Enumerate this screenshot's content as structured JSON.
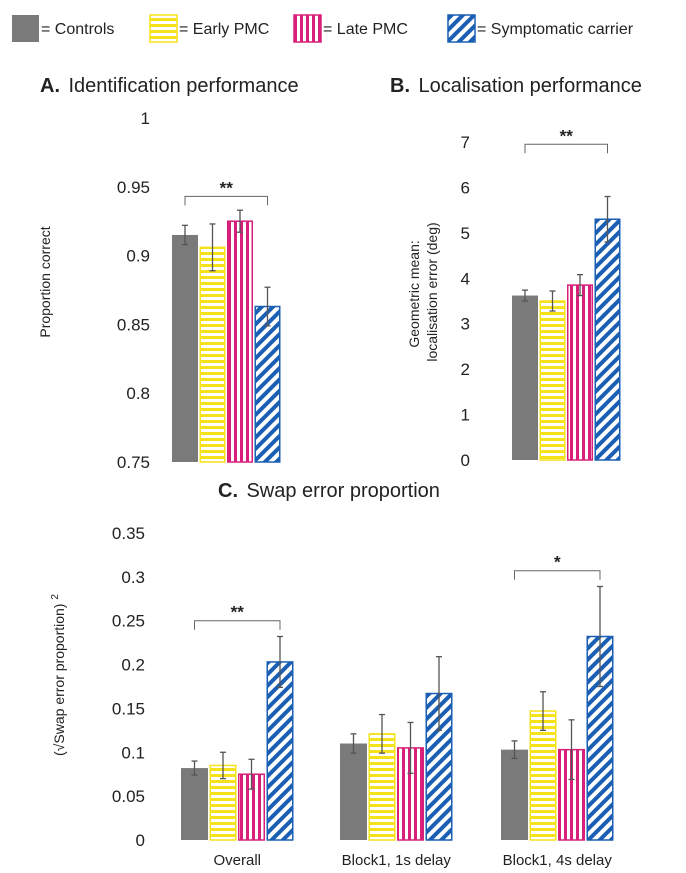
{
  "legend": [
    {
      "label": "= Controls",
      "pattern": "controls",
      "icon": "solid-swatch-icon"
    },
    {
      "label": "= Early PMC",
      "pattern": "early",
      "icon": "horizontal-stripes-swatch-icon"
    },
    {
      "label": "= Late PMC",
      "pattern": "late",
      "icon": "vertical-stripes-swatch-icon"
    },
    {
      "label": "= Symptomatic carrier",
      "pattern": "symptomatic",
      "icon": "diagonal-stripes-swatch-icon"
    }
  ],
  "colors": {
    "controls": "#7a7a7a",
    "early": "#f5e21a",
    "late": "#d8207a",
    "symptomatic": "#1a5fb4",
    "error_bar": "#555555"
  },
  "chart_data": [
    {
      "panel": "A",
      "type": "bar",
      "title_letter": "A.",
      "title": "Identification performance",
      "ylabel": "Proportion correct",
      "ylabel_lines": [
        "Proportion correct"
      ],
      "ylim": [
        0.75,
        1
      ],
      "yticks": [
        "1",
        "0.95",
        "0.9",
        "0.85",
        "0.8",
        "0.75"
      ],
      "categories": [
        ""
      ],
      "series": [
        {
          "name": "Controls",
          "values": [
            0.915
          ],
          "err": [
            0.007
          ]
        },
        {
          "name": "Early PMC",
          "values": [
            0.906
          ],
          "err": [
            0.017
          ]
        },
        {
          "name": "Late PMC",
          "values": [
            0.925
          ],
          "err": [
            0.008
          ]
        },
        {
          "name": "Symptomatic carrier",
          "values": [
            0.863
          ],
          "err": [
            0.014
          ]
        }
      ],
      "significance": [
        {
          "label": "**",
          "from_series": 0,
          "to_series": 3,
          "category": 0,
          "level": 0.943
        }
      ]
    },
    {
      "panel": "B",
      "type": "bar",
      "title_letter": "B.",
      "title": "Localisation performance",
      "ylabel": "Geometric mean: localisation error (deg)",
      "ylabel_lines": [
        "Geometric mean:",
        "localisation error (deg)"
      ],
      "ylim": [
        0,
        7
      ],
      "yticks": [
        "7",
        "6",
        "5",
        "4",
        "3",
        "2",
        "1",
        "0"
      ],
      "categories": [
        ""
      ],
      "series": [
        {
          "name": "Controls",
          "values": [
            3.62
          ],
          "err": [
            0.12
          ]
        },
        {
          "name": "Early PMC",
          "values": [
            3.5
          ],
          "err": [
            0.22
          ]
        },
        {
          "name": "Late PMC",
          "values": [
            3.85
          ],
          "err": [
            0.23
          ]
        },
        {
          "name": "Symptomatic carrier",
          "values": [
            5.3
          ],
          "err": [
            0.5
          ]
        }
      ],
      "significance": [
        {
          "label": "**",
          "from_series": 0,
          "to_series": 3,
          "category": 0,
          "level": 6.95
        }
      ]
    },
    {
      "panel": "C",
      "type": "bar",
      "title_letter": "C.",
      "title": "Swap error proportion",
      "ylabel": "(√Swap error proportion)²",
      "ylabel_text": "(√Swap error proportion)",
      "ylabel_sup": "2",
      "ylim": [
        0,
        0.35
      ],
      "yticks": [
        "0.35",
        "0.3",
        "0.25",
        "0.2",
        "0.15",
        "0.1",
        "0.05",
        "0"
      ],
      "categories": [
        "Overall",
        "Block1, 1s delay",
        "Block1, 4s delay"
      ],
      "series": [
        {
          "name": "Controls",
          "values": [
            0.082,
            0.11,
            0.103
          ],
          "err": [
            0.008,
            0.011,
            0.01
          ]
        },
        {
          "name": "Early PMC",
          "values": [
            0.085,
            0.121,
            0.147
          ],
          "err": [
            0.015,
            0.022,
            0.022
          ]
        },
        {
          "name": "Late PMC",
          "values": [
            0.075,
            0.105,
            0.103
          ],
          "err": [
            0.017,
            0.029,
            0.034
          ]
        },
        {
          "name": "Symptomatic carrier",
          "values": [
            0.203,
            0.167,
            0.232
          ],
          "err": [
            0.029,
            0.042,
            0.057
          ]
        }
      ],
      "significance": [
        {
          "label": "**",
          "from_series": 0,
          "to_series": 3,
          "category": 0,
          "level": 0.25
        },
        {
          "label": "*",
          "from_series": 0,
          "to_series": 3,
          "category": 2,
          "level": 0.307
        }
      ]
    }
  ]
}
